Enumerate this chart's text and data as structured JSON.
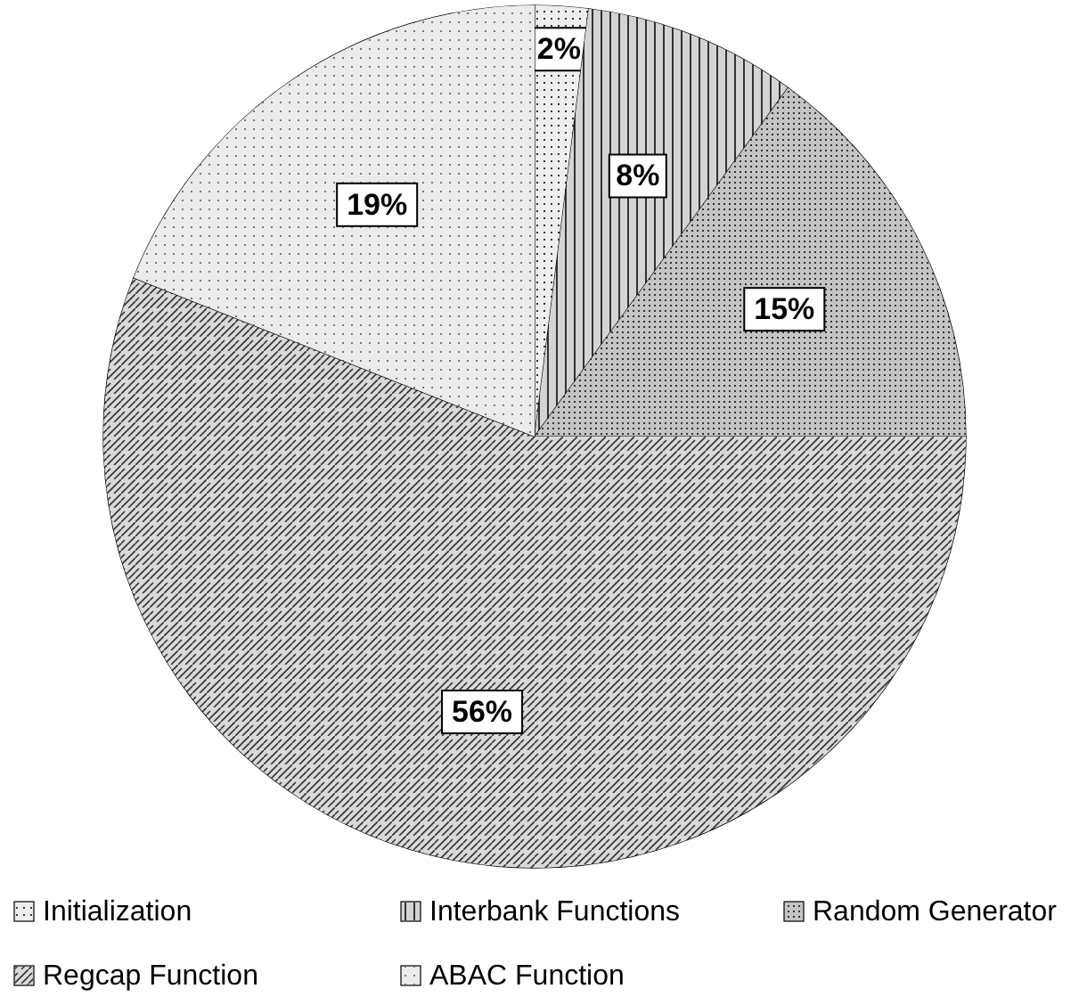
{
  "chart_data": {
    "type": "pie",
    "categories": [
      "Initialization",
      "Interbank Functions",
      "Random Generator",
      "Regcap Function",
      "ABAC Function"
    ],
    "values": [
      2,
      8,
      15,
      56,
      19
    ],
    "colors": [
      "#eeeeee",
      "#d4d4d4",
      "#c4c4c4",
      "#d9d9d9",
      "#ebebeb"
    ],
    "value_labels": [
      "2%",
      "8%",
      "15%",
      "56%",
      "19%"
    ],
    "legend": "bottom"
  }
}
